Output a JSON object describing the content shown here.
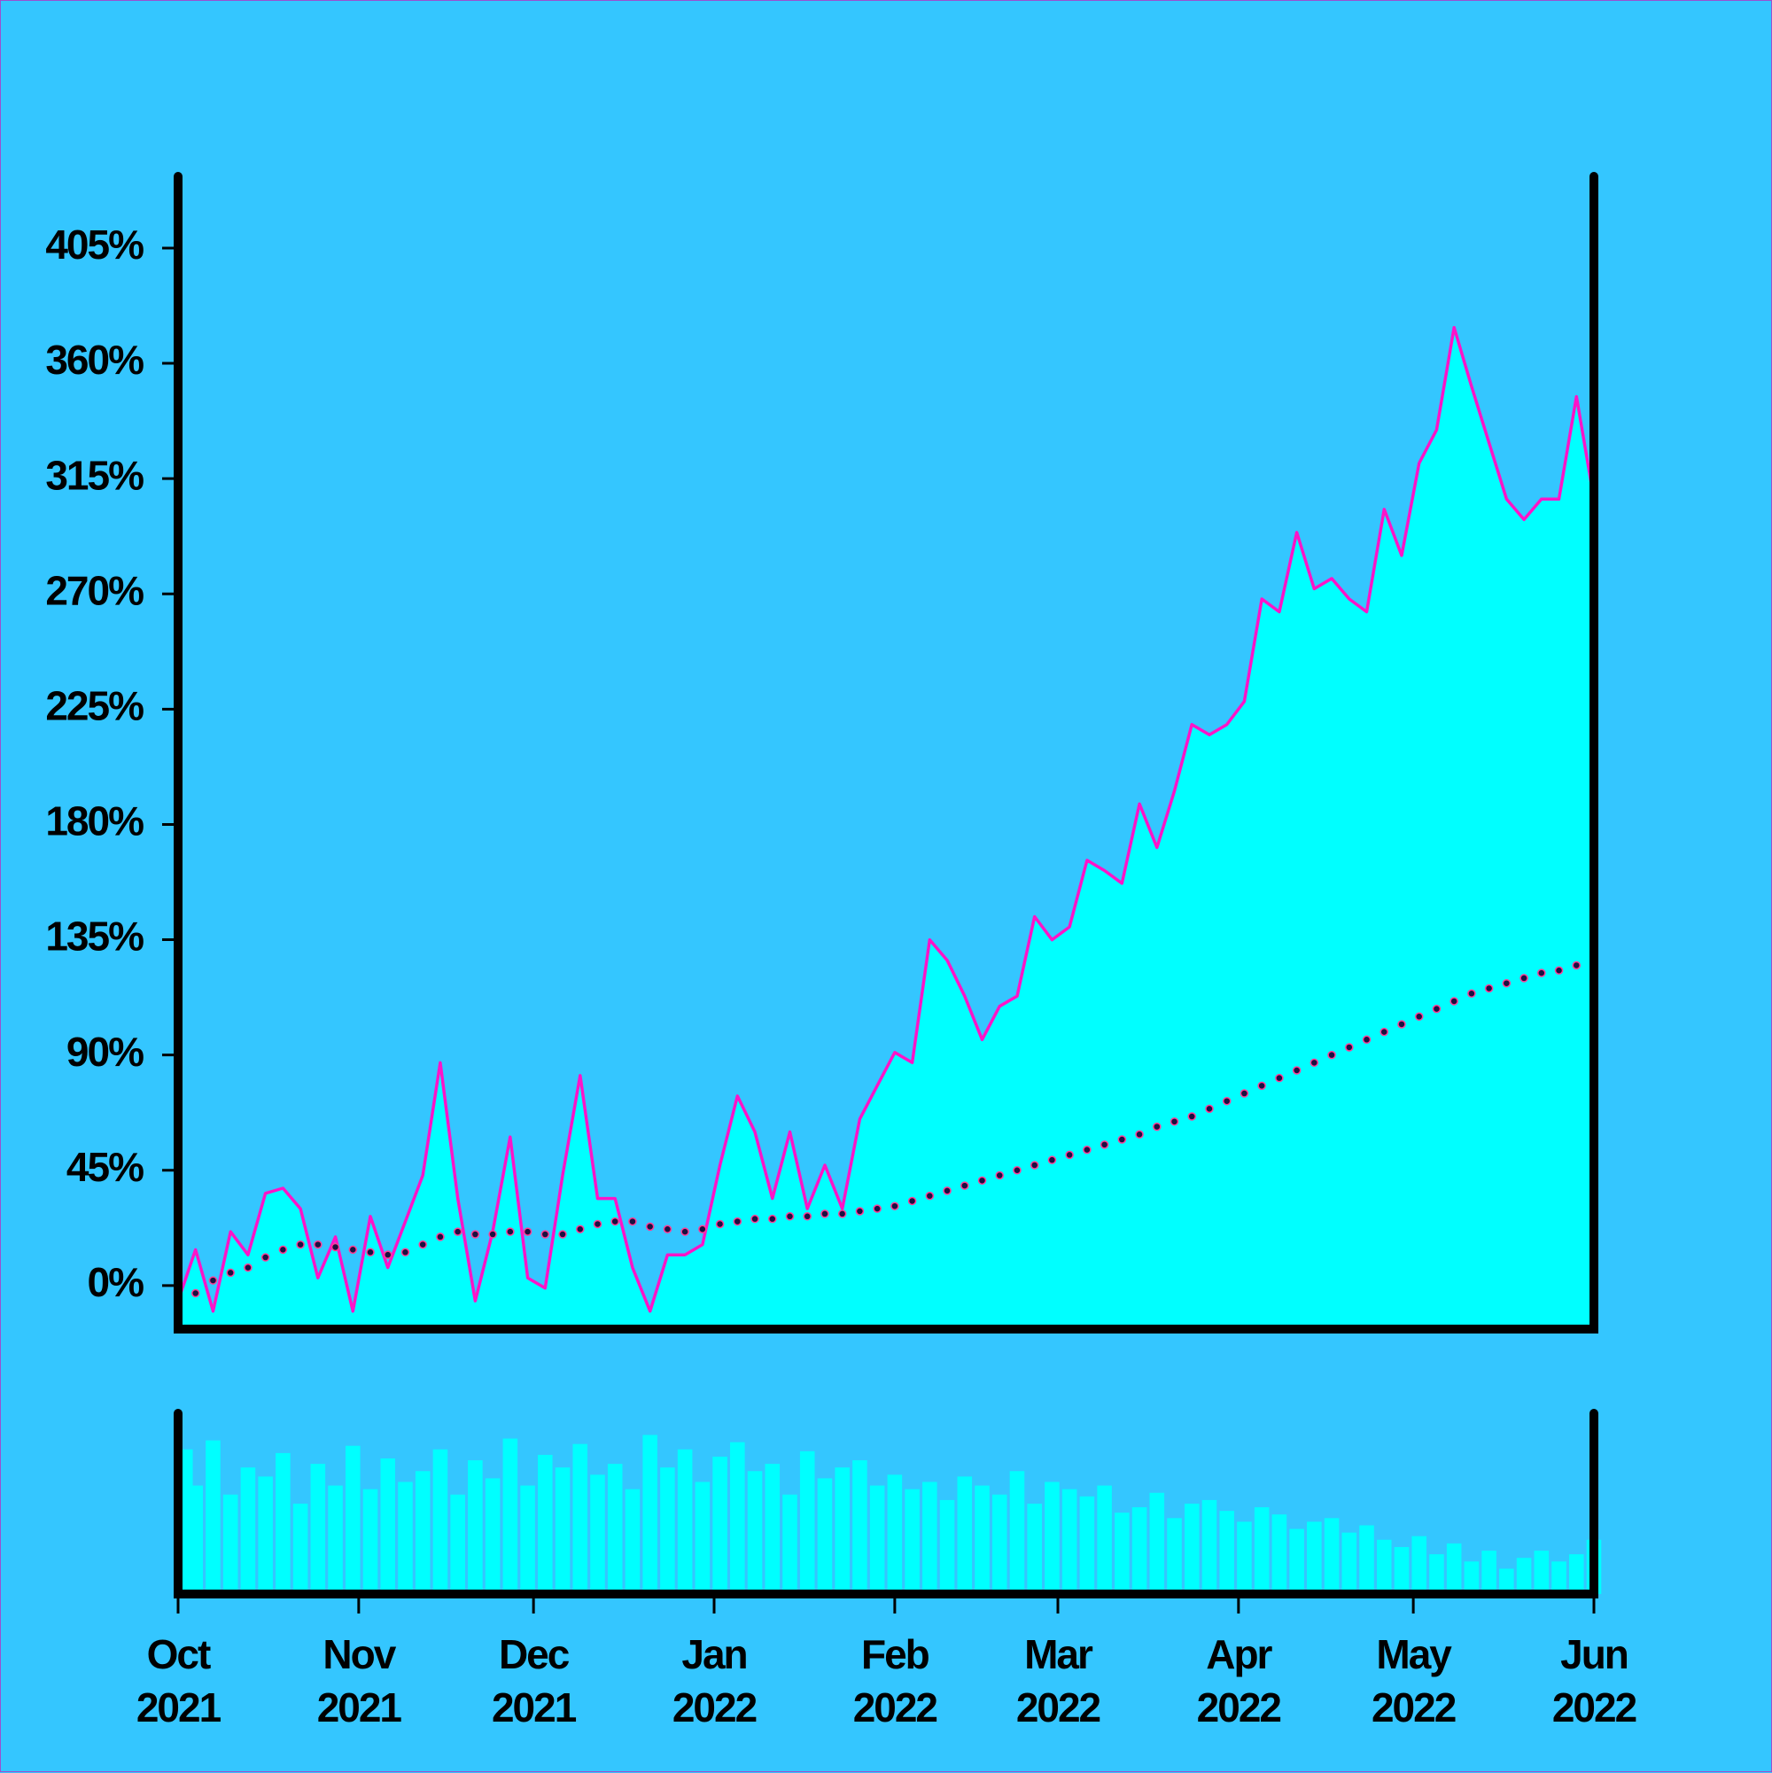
{
  "chart_data": [
    {
      "type": "area",
      "xlim": [
        0,
        243
      ],
      "ylim": [
        -17,
        433
      ],
      "yticks": [
        {
          "value": 0,
          "label": "0%"
        },
        {
          "value": 45,
          "label": "45%"
        },
        {
          "value": 90,
          "label": "90%"
        },
        {
          "value": 135,
          "label": "135%"
        },
        {
          "value": 180,
          "label": "180%"
        },
        {
          "value": 225,
          "label": "225%"
        },
        {
          "value": 270,
          "label": "270%"
        },
        {
          "value": 315,
          "label": "315%"
        },
        {
          "value": 360,
          "label": "360%"
        },
        {
          "value": 405,
          "label": "405%"
        }
      ],
      "x": [
        0,
        3,
        6,
        9,
        12,
        15,
        18,
        21,
        24,
        27,
        30,
        33,
        36,
        39,
        42,
        45,
        48,
        51,
        54,
        57,
        60,
        63,
        66,
        69,
        72,
        75,
        78,
        81,
        84,
        87,
        90,
        93,
        96,
        99,
        102,
        105,
        108,
        111,
        114,
        117,
        120,
        123,
        126,
        129,
        132,
        135,
        138,
        141,
        144,
        147,
        150,
        153,
        156,
        159,
        162,
        165,
        168,
        171,
        174,
        177,
        180,
        183,
        186,
        189,
        192,
        195,
        198,
        201,
        204,
        207,
        210,
        213,
        216,
        219,
        222,
        225,
        228,
        231,
        234,
        237,
        240,
        243
      ],
      "series": [
        {
          "color": "#ff14c8",
          "fill": "#00ffff",
          "style": "area",
          "values": [
            -6,
            14,
            -10,
            21,
            12,
            36,
            38,
            30,
            3,
            19,
            -10,
            27,
            7,
            25,
            43,
            87,
            34,
            -6,
            21,
            58,
            3,
            -1,
            43,
            82,
            34,
            34,
            7,
            -10,
            12,
            12,
            16,
            47,
            74,
            60,
            34,
            60,
            30,
            47,
            30,
            65,
            78,
            91,
            87,
            135,
            127,
            113,
            96,
            109,
            113,
            144,
            135,
            140,
            166,
            162,
            157,
            188,
            171,
            193,
            219,
            215,
            219,
            228,
            268,
            263,
            294,
            272,
            276,
            268,
            263,
            303,
            285,
            321,
            334,
            374,
            351,
            329,
            307,
            299,
            307,
            307,
            347,
            307
          ]
        },
        {
          "color": "#ff3c96",
          "fill": "#1a1040",
          "style": "dots",
          "values": [
            0,
            -3,
            2,
            5,
            7,
            11,
            14,
            16,
            16,
            15,
            14,
            13,
            12,
            13,
            16,
            19,
            21,
            20,
            20,
            21,
            21,
            20,
            20,
            22,
            24,
            25,
            25,
            23,
            22,
            21,
            22,
            24,
            25,
            26,
            26,
            27,
            27,
            28,
            28,
            29,
            30,
            31,
            33,
            35,
            37,
            39,
            41,
            43,
            45,
            47,
            49,
            51,
            53,
            55,
            57,
            59,
            62,
            64,
            66,
            69,
            72,
            75,
            78,
            81,
            84,
            87,
            90,
            93,
            96,
            99,
            102,
            105,
            108,
            111,
            114,
            116,
            118,
            120,
            122,
            123,
            125,
            127
          ]
        }
      ]
    },
    {
      "type": "bar",
      "xlim": [
        0,
        243
      ],
      "ylim": [
        0,
        100
      ],
      "color": "#00ffff",
      "xticks": [
        {
          "value": 0,
          "label": "Oct\n2021"
        },
        {
          "value": 31,
          "label": "Nov\n2021"
        },
        {
          "value": 61,
          "label": "Dec\n2021"
        },
        {
          "value": 92,
          "label": "Jan\n2022"
        },
        {
          "value": 123,
          "label": "Feb\n2022"
        },
        {
          "value": 151,
          "label": "Mar\n2022"
        },
        {
          "value": 182,
          "label": "Apr\n2022"
        },
        {
          "value": 212,
          "label": "May\n2022"
        },
        {
          "value": 243,
          "label": "Jun\n2022"
        }
      ],
      "x": [
        0,
        3,
        6,
        9,
        12,
        15,
        18,
        21,
        24,
        27,
        30,
        33,
        36,
        39,
        42,
        45,
        48,
        51,
        54,
        57,
        60,
        63,
        66,
        69,
        72,
        75,
        78,
        81,
        84,
        87,
        90,
        93,
        96,
        99,
        102,
        105,
        108,
        111,
        114,
        117,
        120,
        123,
        126,
        129,
        132,
        135,
        138,
        141,
        144,
        147,
        150,
        153,
        156,
        159,
        162,
        165,
        168,
        171,
        174,
        177,
        180,
        183,
        186,
        189,
        192,
        195,
        198,
        201,
        204,
        207,
        210,
        213,
        216,
        219,
        222,
        225,
        228,
        231,
        234,
        237,
        240,
        243
      ],
      "values": [
        80,
        60,
        85,
        55,
        70,
        65,
        78,
        50,
        72,
        60,
        82,
        58,
        75,
        62,
        68,
        80,
        55,
        74,
        64,
        86,
        60,
        77,
        70,
        83,
        66,
        72,
        58,
        88,
        70,
        80,
        62,
        76,
        84,
        68,
        72,
        55,
        79,
        64,
        70,
        74,
        60,
        66,
        58,
        62,
        52,
        65,
        60,
        55,
        68,
        50,
        62,
        58,
        54,
        60,
        45,
        48,
        56,
        42,
        50,
        52,
        46,
        40,
        48,
        44,
        36,
        40,
        42,
        34,
        38,
        30,
        26,
        32,
        22,
        28,
        18,
        24,
        14,
        20,
        24,
        18,
        22,
        30
      ]
    }
  ]
}
